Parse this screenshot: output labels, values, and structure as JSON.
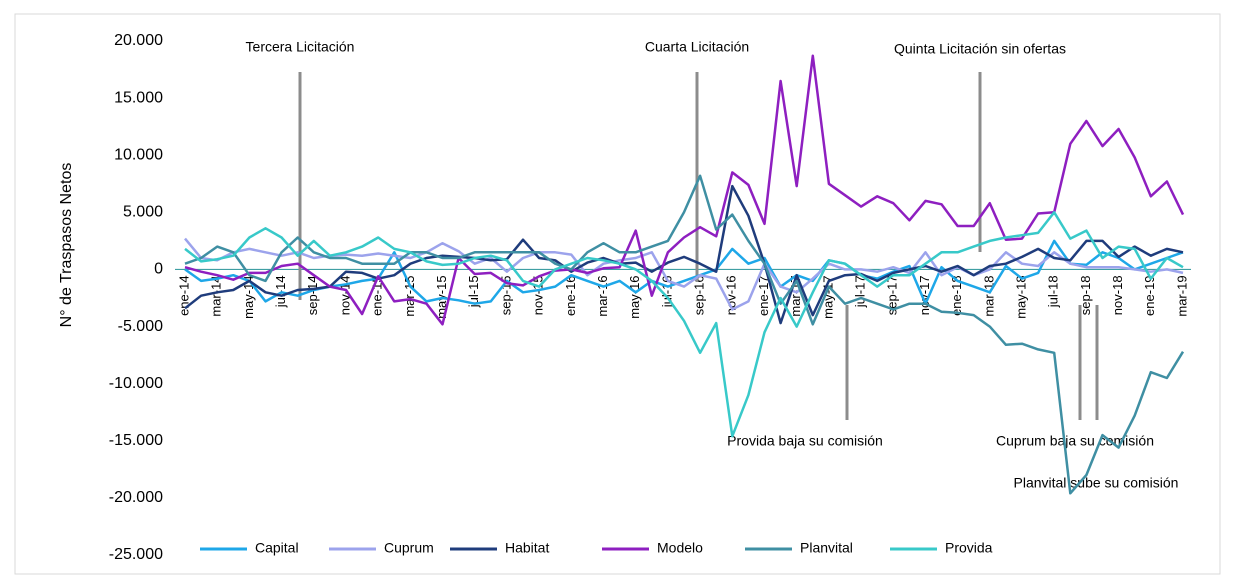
{
  "chart_data": {
    "type": "line",
    "ylabel": "N° de Traspasos Netos",
    "categories": [
      "ene-14",
      null,
      "mar-14",
      null,
      "may-14",
      null,
      "jul-14",
      null,
      "sep-14",
      null,
      "nov-14",
      null,
      "ene-15",
      null,
      "mar-15",
      null,
      "may-15",
      null,
      "jul-15",
      null,
      "sep-15",
      null,
      "nov-15",
      null,
      "ene-16",
      null,
      "mar-16",
      null,
      "may-16",
      null,
      "jul-16",
      null,
      "sep-16",
      null,
      "nov-16",
      null,
      "ene-17",
      null,
      "mar-17",
      null,
      "may-17",
      null,
      "jul-17",
      null,
      "sep-17",
      null,
      "nov-17",
      null,
      "ene-18",
      null,
      "mar-18",
      null,
      "may-18",
      null,
      "jul-18",
      null,
      "sep-18",
      null,
      "nov-18",
      null,
      "ene-19",
      null,
      "mar-19"
    ],
    "series": [
      {
        "name": "Capital",
        "color": "#1ea7e8",
        "values": [
          0,
          -1000,
          -800,
          -500,
          -1000,
          -2800,
          -2000,
          -2300,
          -1800,
          -1500,
          -1300,
          -1000,
          -800,
          1500,
          -1500,
          -2800,
          -2500,
          -2700,
          -3000,
          -2800,
          -1000,
          -2000,
          -1800,
          -1500,
          -500,
          -1000,
          -1500,
          -1000,
          -2000,
          -1000,
          -1500,
          -1000,
          -500,
          0,
          1800,
          500,
          1000,
          -1500,
          -500,
          -1000,
          800,
          500,
          -500,
          -800,
          -200,
          300,
          -3000,
          200,
          -1000,
          -1500,
          -2000,
          300,
          -800,
          -300,
          2500,
          500,
          400,
          1500,
          1000,
          0,
          500,
          1000,
          1500
        ]
      },
      {
        "name": "Cuprum",
        "color": "#9ca3ec",
        "values": [
          2700,
          1000,
          800,
          1500,
          1800,
          1500,
          1200,
          1500,
          1000,
          1200,
          1300,
          1200,
          1400,
          1200,
          1000,
          1500,
          2300,
          1600,
          500,
          1000,
          -200,
          1000,
          1500,
          1500,
          1300,
          -500,
          500,
          800,
          1000,
          1500,
          -1000,
          -1500,
          -500,
          -800,
          -3500,
          -2800,
          500,
          -1500,
          -2000,
          -800,
          500,
          0,
          0,
          -200,
          200,
          -300,
          1500,
          -500,
          200,
          -500,
          0,
          1500,
          500,
          300,
          1500,
          500,
          200,
          200,
          200,
          0,
          -200,
          0,
          -300
        ]
      },
      {
        "name": "Habitat",
        "color": "#1f3c7c",
        "values": [
          -3400,
          -2300,
          -2000,
          -1800,
          -1000,
          -2000,
          -2300,
          -1800,
          -1700,
          -1500,
          -200,
          -300,
          -800,
          -500,
          500,
          1000,
          1200,
          1100,
          1000,
          800,
          900,
          2600,
          1000,
          800,
          -200,
          600,
          1000,
          500,
          600,
          -200,
          600,
          1100,
          500,
          -200,
          7300,
          4700,
          500,
          -4700,
          -500,
          -4000,
          -1000,
          -500,
          -400,
          -1000,
          -300,
          0,
          300,
          -200,
          300,
          -500,
          300,
          500,
          1100,
          1800,
          1000,
          800,
          2500,
          2500,
          1100,
          2000,
          1200,
          1800,
          1500
        ]
      },
      {
        "name": "Modelo",
        "color": "#8e1fc0",
        "values": [
          200,
          -200,
          -500,
          -900,
          -300,
          -300,
          300,
          500,
          -500,
          -1500,
          -1800,
          -3900,
          -600,
          -2800,
          -2600,
          -3000,
          -4800,
          1000,
          -400,
          -300,
          -1200,
          -1400,
          -600,
          -100,
          0,
          -300,
          100,
          200,
          3400,
          -2300,
          1500,
          2800,
          3700,
          2900,
          8500,
          7400,
          4000,
          16500,
          7300,
          18700,
          7500,
          6500,
          5500,
          6400,
          5800,
          4300,
          6000,
          5700,
          3800,
          3800,
          5800,
          2600,
          2700,
          4900,
          5000,
          11000,
          13000,
          10800,
          12300,
          9800,
          6400,
          7700,
          4800
        ]
      },
      {
        "name": "Planvital",
        "color": "#3f8fa3",
        "values": [
          500,
          1000,
          2000,
          1500,
          -500,
          -1000,
          1500,
          2800,
          1500,
          1000,
          1000,
          500,
          500,
          500,
          1500,
          1500,
          1000,
          1000,
          1500,
          1500,
          1500,
          1500,
          1500,
          500,
          0,
          1500,
          2300,
          1500,
          1500,
          2000,
          2500,
          5000,
          8200,
          3500,
          4800,
          2500,
          500,
          -3000,
          -1000,
          -4800,
          -1500,
          -3000,
          -2500,
          -3000,
          -3500,
          -3000,
          -3000,
          -3700,
          -3800,
          -4000,
          -5000,
          -6600,
          -6500,
          -7000,
          -7300,
          -19600,
          -18000,
          -14500,
          -15600,
          -12800,
          -9000,
          -9500,
          -7200
        ]
      },
      {
        "name": "Provida",
        "color": "#38c9c9",
        "values": [
          1800,
          700,
          900,
          1200,
          2800,
          3600,
          2800,
          1200,
          2500,
          1200,
          1500,
          2000,
          2800,
          1800,
          1500,
          700,
          400,
          500,
          1000,
          1200,
          800,
          -1000,
          -1500,
          0,
          500,
          1000,
          800,
          500,
          0,
          -1000,
          -2500,
          -4500,
          -7300,
          -4700,
          -14600,
          -11000,
          -5500,
          -2500,
          -5000,
          -2000,
          800,
          500,
          -500,
          -1500,
          -500,
          -500,
          500,
          1500,
          1500,
          2000,
          2500,
          2800,
          3000,
          3200,
          5000,
          2700,
          3400,
          1000,
          2000,
          1800,
          -800,
          1000,
          200
        ]
      }
    ],
    "ylim": [
      -25000,
      20000
    ],
    "yticks": [
      {
        "value": -25000,
        "label": "-25.000"
      },
      {
        "value": -20000,
        "label": "-20.000"
      },
      {
        "value": -15000,
        "label": "-15.000"
      },
      {
        "value": -10000,
        "label": "-10.000"
      },
      {
        "value": -5000,
        "label": "-5.000"
      },
      0,
      {
        "value": 5000,
        "label": "5.000"
      },
      {
        "value": 10000,
        "label": "10.000"
      },
      {
        "value": 15000,
        "label": "15.000"
      },
      {
        "value": 20000,
        "label": "20.000"
      }
    ],
    "annotations": [
      "Tercera Licitación",
      "Cuarta Licitación",
      "Quinta Licitación sin ofertas",
      "Provida baja su comisión",
      "Cuprum baja su comisión",
      "Planvital sube su comisión"
    ],
    "legend": "bottom"
  }
}
